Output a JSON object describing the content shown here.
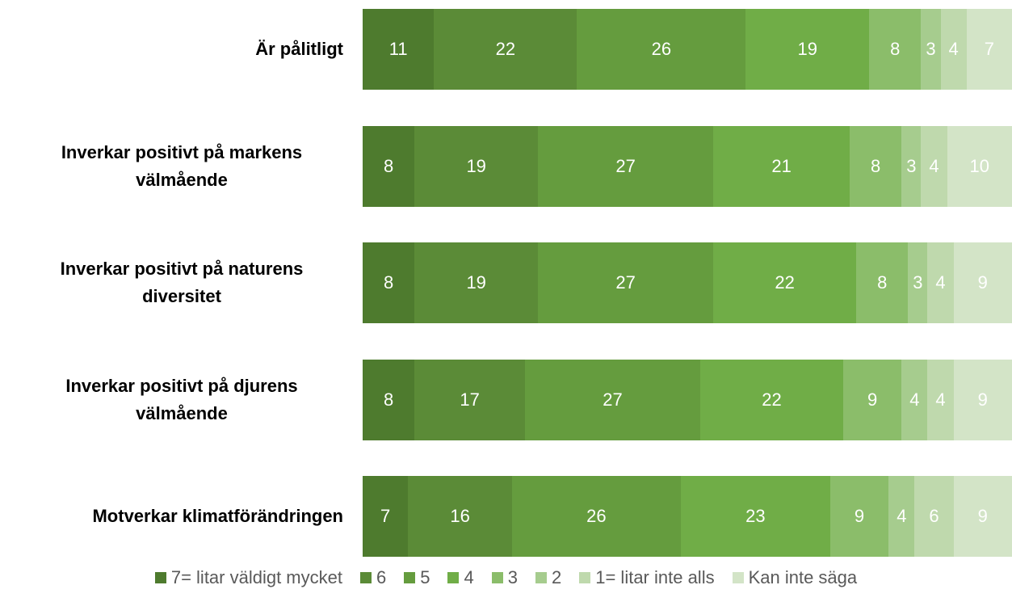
{
  "chart_data": {
    "type": "stacked_bar_horizontal",
    "categories": [
      "Är pålitligt",
      "Inverkar positivt på markens välmående",
      "Inverkar positivt på naturens diversitet",
      "Inverkar positivt på djurens välmående",
      "Motverkar klimatförändringen"
    ],
    "series": [
      {
        "name": "7= litar väldigt mycket",
        "color": "#4e7b2e",
        "values": [
          11,
          8,
          8,
          8,
          7
        ]
      },
      {
        "name": "6",
        "color": "#5b8b37",
        "values": [
          22,
          19,
          19,
          17,
          16
        ]
      },
      {
        "name": "5",
        "color": "#659c3e",
        "values": [
          26,
          27,
          27,
          27,
          26
        ]
      },
      {
        "name": "4",
        "color": "#70ad47",
        "values": [
          19,
          21,
          22,
          22,
          23
        ]
      },
      {
        "name": "3",
        "color": "#8bbd6a",
        "values": [
          8,
          8,
          8,
          9,
          9
        ]
      },
      {
        "name": "2",
        "color": "#a6cc8e",
        "values": [
          3,
          3,
          3,
          4,
          4
        ]
      },
      {
        "name": "1= litar inte alls",
        "color": "#bfd9ad",
        "values": [
          4,
          4,
          4,
          4,
          6
        ]
      },
      {
        "name": "Kan inte säga",
        "color": "#d3e4c7",
        "values": [
          7,
          10,
          9,
          9,
          9
        ]
      }
    ]
  }
}
